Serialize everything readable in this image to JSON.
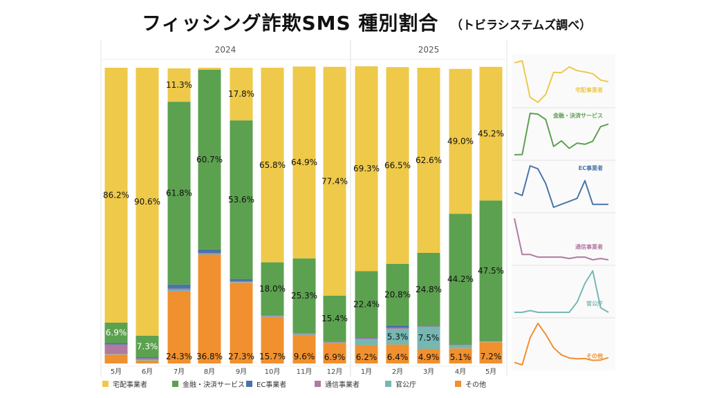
{
  "title": "フィッシング詐欺SMS 種別割合",
  "subtitle": "（トビラシステムズ調べ）",
  "colors": {
    "delivery": "#EEC94A",
    "finance": "#5BA14F",
    "ec": "#4A74A8",
    "telecom": "#B07AA1",
    "government": "#76B7B2",
    "other": "#F0902E"
  },
  "chart_data": {
    "type": "bar",
    "stacked": true,
    "normalized": true,
    "year_groups": [
      {
        "label": "2024",
        "months": [
          "5月",
          "6月",
          "7月",
          "8月",
          "9月",
          "10月",
          "11月",
          "12月"
        ]
      },
      {
        "label": "2025",
        "months": [
          "1月",
          "2月",
          "3月",
          "4月",
          "5月"
        ]
      }
    ],
    "categories": [
      "5月",
      "6月",
      "7月",
      "8月",
      "9月",
      "10月",
      "11月",
      "12月",
      "1月",
      "2月",
      "3月",
      "4月",
      "5月"
    ],
    "ylim": [
      0,
      100
    ],
    "series": [
      {
        "key": "other",
        "name": "その他",
        "values": [
          3.0,
          1.0,
          24.3,
          36.8,
          27.3,
          15.7,
          9.6,
          6.9,
          6.2,
          6.4,
          4.9,
          5.1,
          7.2
        ]
      },
      {
        "key": "government",
        "name": "官公庁",
        "values": [
          0.2,
          0.2,
          0.5,
          0.2,
          0.2,
          0.2,
          0.2,
          0.2,
          2.0,
          5.3,
          7.5,
          1.0,
          0.2
        ]
      },
      {
        "key": "telecom",
        "name": "通信事業者",
        "values": [
          3.2,
          0.5,
          0.5,
          0.3,
          0.3,
          0.3,
          0.3,
          0.2,
          0.3,
          0.3,
          0.1,
          0.2,
          0.1
        ]
      },
      {
        "key": "ec",
        "name": "EC事業者",
        "values": [
          0.5,
          0.4,
          1.4,
          1.3,
          0.8,
          0.0,
          0.1,
          0.2,
          0.3,
          0.9,
          0.1,
          0.1,
          0.1
        ]
      },
      {
        "key": "finance",
        "name": "金融・決済サービス",
        "values": [
          6.9,
          7.3,
          61.8,
          60.7,
          53.6,
          18.0,
          25.3,
          15.4,
          22.4,
          20.8,
          24.8,
          44.2,
          47.5
        ]
      },
      {
        "key": "delivery",
        "name": "宅配事業者",
        "values": [
          86.2,
          90.6,
          11.3,
          0.7,
          17.8,
          65.8,
          64.9,
          77.4,
          69.3,
          66.5,
          62.6,
          49.0,
          45.2
        ]
      }
    ],
    "data_labels": [
      {
        "series": "delivery",
        "index": 0,
        "text": "86.2%"
      },
      {
        "series": "delivery",
        "index": 1,
        "text": "90.6%"
      },
      {
        "series": "delivery",
        "index": 2,
        "text": "11.3%"
      },
      {
        "series": "delivery",
        "index": 4,
        "text": "17.8%"
      },
      {
        "series": "delivery",
        "index": 5,
        "text": "65.8%"
      },
      {
        "series": "delivery",
        "index": 6,
        "text": "64.9%"
      },
      {
        "series": "delivery",
        "index": 7,
        "text": "77.4%"
      },
      {
        "series": "delivery",
        "index": 8,
        "text": "69.3%"
      },
      {
        "series": "delivery",
        "index": 9,
        "text": "66.5%"
      },
      {
        "series": "delivery",
        "index": 10,
        "text": "62.6%"
      },
      {
        "series": "delivery",
        "index": 11,
        "text": "49.0%"
      },
      {
        "series": "delivery",
        "index": 12,
        "text": "45.2%"
      },
      {
        "series": "finance",
        "index": 0,
        "text": "6.9%"
      },
      {
        "series": "finance",
        "index": 1,
        "text": "7.3%"
      },
      {
        "series": "finance",
        "index": 2,
        "text": "61.8%"
      },
      {
        "series": "finance",
        "index": 3,
        "text": "60.7%"
      },
      {
        "series": "finance",
        "index": 4,
        "text": "53.6%"
      },
      {
        "series": "finance",
        "index": 5,
        "text": "18.0%"
      },
      {
        "series": "finance",
        "index": 6,
        "text": "25.3%"
      },
      {
        "series": "finance",
        "index": 7,
        "text": "15.4%"
      },
      {
        "series": "finance",
        "index": 8,
        "text": "22.4%"
      },
      {
        "series": "finance",
        "index": 9,
        "text": "20.8%"
      },
      {
        "series": "finance",
        "index": 10,
        "text": "24.8%"
      },
      {
        "series": "finance",
        "index": 11,
        "text": "44.2%"
      },
      {
        "series": "finance",
        "index": 12,
        "text": "47.5%"
      },
      {
        "series": "government",
        "index": 9,
        "text": "5.3%"
      },
      {
        "series": "government",
        "index": 10,
        "text": "7.5%"
      },
      {
        "series": "other",
        "index": 2,
        "text": "24.3%"
      },
      {
        "series": "other",
        "index": 3,
        "text": "36.8%"
      },
      {
        "series": "other",
        "index": 4,
        "text": "27.3%"
      },
      {
        "series": "other",
        "index": 5,
        "text": "15.7%"
      },
      {
        "series": "other",
        "index": 6,
        "text": "9.6%"
      },
      {
        "series": "other",
        "index": 7,
        "text": "6.9%"
      },
      {
        "series": "other",
        "index": 8,
        "text": "6.2%"
      },
      {
        "series": "other",
        "index": 9,
        "text": "6.4%"
      },
      {
        "series": "other",
        "index": 10,
        "text": "4.9%"
      },
      {
        "series": "other",
        "index": 11,
        "text": "5.1%"
      },
      {
        "series": "other",
        "index": 12,
        "text": "7.2%"
      }
    ],
    "legend": {
      "position": "bottom",
      "entries": [
        "宅配事業者",
        "金融・決済サービス",
        "EC事業者",
        "通信事業者",
        "官公庁",
        "その他"
      ]
    },
    "sparklines": [
      {
        "key": "delivery",
        "label": "宅配事業者"
      },
      {
        "key": "finance",
        "label": "金融・決済サービス"
      },
      {
        "key": "ec",
        "label": "EC事業者"
      },
      {
        "key": "telecom",
        "label": "通信事業者"
      },
      {
        "key": "government",
        "label": "官公庁"
      },
      {
        "key": "other",
        "label": "その他"
      }
    ]
  }
}
